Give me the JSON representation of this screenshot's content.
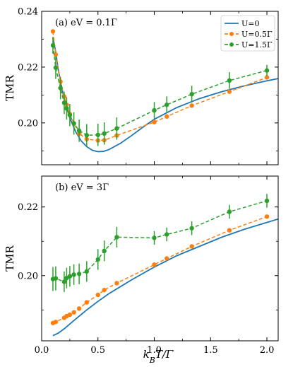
{
  "chart_data": {
    "type": "line",
    "xlabel": "k_BT/Γ",
    "ylabel": "TMR",
    "xlim": [
      0.0,
      2.1
    ],
    "x_ticks": [
      0.0,
      0.5,
      1.0,
      1.5,
      2.0
    ],
    "x_tick_labels": [
      "0.0",
      "0.5",
      "1.0",
      "1.5",
      "2.0"
    ],
    "legend": {
      "placement": "top-right",
      "entries": [
        "U=0",
        "U=0.5Γ",
        "U=1.5Γ"
      ]
    },
    "colors": {
      "U0": "#1f77b4",
      "U05": "#ff7f0e",
      "U15": "#2ca02c"
    },
    "panels": [
      {
        "annotation": "(a) eV = 0.1Γ",
        "ylim": [
          0.185,
          0.24
        ],
        "y_ticks": [
          0.2,
          0.22,
          0.24
        ],
        "y_tick_labels": [
          "0.20",
          "0.22",
          "0.24"
        ],
        "series": [
          {
            "name": "U=0",
            "style": "solid",
            "x": [
              0.1,
              0.12,
              0.15,
              0.2,
              0.25,
              0.3,
              0.35,
              0.4,
              0.45,
              0.5,
              0.55,
              0.6,
              0.7,
              0.8,
              0.9,
              1.0,
              1.2,
              1.4,
              1.6,
              1.8,
              2.0,
              2.1
            ],
            "y": [
              0.2305,
              0.2265,
              0.2185,
              0.2085,
              0.2018,
              0.197,
              0.1936,
              0.1915,
              0.1902,
              0.1897,
              0.1898,
              0.1905,
              0.1927,
              0.1955,
              0.1985,
              0.2013,
              0.2055,
              0.2087,
              0.2112,
              0.2133,
              0.2151,
              0.2159
            ]
          },
          {
            "name": "U=0.5Γ",
            "style": "dashed",
            "x": [
              0.1,
              0.125,
              0.167,
              0.2,
              0.222,
              0.25,
              0.286,
              0.333,
              0.4,
              0.5,
              0.556,
              0.667,
              1.0,
              1.111,
              1.333,
              1.667,
              2.0
            ],
            "y": [
              0.2328,
              0.2245,
              0.2148,
              0.2095,
              0.2065,
              0.2032,
              0.1998,
              0.1962,
              0.1942,
              0.1937,
              0.1938,
              0.1955,
              0.2003,
              0.2023,
              0.2062,
              0.2112,
              0.2163
            ]
          },
          {
            "name": "U=1.5Γ",
            "style": "dashed",
            "x": [
              0.1,
              0.125,
              0.167,
              0.2,
              0.222,
              0.25,
              0.286,
              0.333,
              0.4,
              0.5,
              0.556,
              0.667,
              1.0,
              1.111,
              1.333,
              1.667,
              2.0
            ],
            "y": [
              0.2278,
              0.2198,
              0.2125,
              0.2072,
              0.2052,
              0.2028,
              0.1998,
              0.1972,
              0.1956,
              0.1957,
              0.1962,
              0.198,
              0.2045,
              0.2065,
              0.2103,
              0.2152,
              0.2188
            ],
            "yerr": [
              0.003,
              0.004,
              0.004,
              0.004,
              0.004,
              0.004,
              0.004,
              0.004,
              0.004,
              0.004,
              0.004,
              0.004,
              0.003,
              0.003,
              0.003,
              0.003,
              0.002
            ]
          }
        ]
      },
      {
        "annotation": "(b) eV = 3Γ",
        "ylim": [
          0.181,
          0.229
        ],
        "y_ticks": [
          0.2,
          0.22
        ],
        "y_tick_labels": [
          "0.20",
          "0.22"
        ],
        "series": [
          {
            "name": "U=0",
            "style": "solid",
            "x": [
              0.1,
              0.15,
              0.2,
              0.3,
              0.4,
              0.5,
              0.6,
              0.7,
              0.8,
              1.0,
              1.2,
              1.4,
              1.6,
              1.8,
              2.0,
              2.1
            ],
            "y": [
              0.1825,
              0.1833,
              0.1845,
              0.1873,
              0.19,
              0.1925,
              0.1948,
              0.1968,
              0.1988,
              0.2025,
              0.2058,
              0.2085,
              0.2112,
              0.2135,
              0.2155,
              0.2165
            ]
          },
          {
            "name": "U=0.5Γ",
            "style": "dashed",
            "x": [
              0.1,
              0.125,
              0.2,
              0.222,
              0.25,
              0.286,
              0.333,
              0.4,
              0.5,
              0.556,
              0.667,
              1.0,
              1.111,
              1.333,
              1.667,
              2.0
            ],
            "y": [
              0.1862,
              0.1865,
              0.1877,
              0.1882,
              0.1886,
              0.1893,
              0.1904,
              0.1922,
              0.1944,
              0.1958,
              0.1978,
              0.2032,
              0.205,
              0.2085,
              0.2132,
              0.2172
            ]
          },
          {
            "name": "U=1.5Γ",
            "style": "dashed",
            "x": [
              0.1,
              0.125,
              0.2,
              0.222,
              0.25,
              0.286,
              0.333,
              0.4,
              0.5,
              0.556,
              0.667,
              1.0,
              1.111,
              1.333,
              1.667,
              2.0
            ],
            "y": [
              0.199,
              0.1992,
              0.1982,
              0.1993,
              0.1998,
              0.2003,
              0.2005,
              0.2012,
              0.2047,
              0.2072,
              0.2112,
              0.211,
              0.212,
              0.2138,
              0.2186,
              0.2218
            ],
            "yerr": [
              0.0035,
              0.0035,
              0.003,
              0.003,
              0.003,
              0.003,
              0.003,
              0.003,
              0.003,
              0.003,
              0.003,
              0.002,
              0.002,
              0.002,
              0.002,
              0.002
            ]
          }
        ]
      }
    ]
  }
}
